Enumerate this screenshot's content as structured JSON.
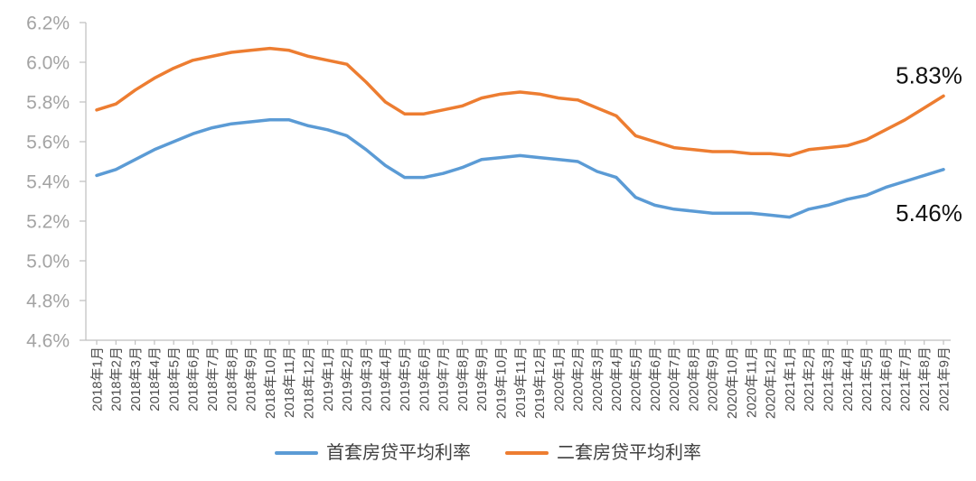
{
  "chart_data": {
    "type": "line",
    "title": "",
    "grid": false,
    "legend_position": "bottom",
    "categories": [
      "2018年1月",
      "2018年2月",
      "2018年3月",
      "2018年4月",
      "2018年5月",
      "2018年6月",
      "2018年7月",
      "2018年8月",
      "2018年9月",
      "2018年10月",
      "2018年11月",
      "2018年12月",
      "2019年1月",
      "2019年2月",
      "2019年3月",
      "2019年4月",
      "2019年5月",
      "2019年6月",
      "2019年7月",
      "2019年8月",
      "2019年9月",
      "2019年10月",
      "2019年11月",
      "2019年12月",
      "2020年1月",
      "2020年2月",
      "2020年3月",
      "2020年4月",
      "2020年5月",
      "2020年6月",
      "2020年7月",
      "2020年8月",
      "2020年9月",
      "2020年10月",
      "2020年11月",
      "2020年12月",
      "2021年1月",
      "2021年2月",
      "2021年3月",
      "2021年4月",
      "2021年5月",
      "2021年6月",
      "2021年7月",
      "2021年8月",
      "2021年9月"
    ],
    "series": [
      {
        "name": "首套房贷平均利率",
        "color": "#5B9BD5",
        "values": [
          5.43,
          5.46,
          5.51,
          5.56,
          5.6,
          5.64,
          5.67,
          5.69,
          5.7,
          5.71,
          5.71,
          5.68,
          5.66,
          5.63,
          5.56,
          5.48,
          5.42,
          5.42,
          5.44,
          5.47,
          5.51,
          5.52,
          5.53,
          5.52,
          5.51,
          5.5,
          5.45,
          5.42,
          5.32,
          5.28,
          5.26,
          5.25,
          5.24,
          5.24,
          5.24,
          5.23,
          5.22,
          5.26,
          5.28,
          5.31,
          5.33,
          5.37,
          5.4,
          5.43,
          5.46
        ]
      },
      {
        "name": "二套房贷平均利率",
        "color": "#ED7D31",
        "values": [
          5.76,
          5.79,
          5.86,
          5.92,
          5.97,
          6.01,
          6.03,
          6.05,
          6.06,
          6.07,
          6.06,
          6.03,
          6.01,
          5.99,
          5.9,
          5.8,
          5.74,
          5.74,
          5.76,
          5.78,
          5.82,
          5.84,
          5.85,
          5.84,
          5.82,
          5.81,
          5.77,
          5.73,
          5.63,
          5.6,
          5.57,
          5.56,
          5.55,
          5.55,
          5.54,
          5.54,
          5.53,
          5.56,
          5.57,
          5.58,
          5.61,
          5.66,
          5.71,
          5.77,
          5.83
        ]
      }
    ],
    "y_axis": {
      "min": 4.6,
      "max": 6.2,
      "step": 0.2,
      "unit": "%",
      "tick_labels": [
        "4.6%",
        "4.8%",
        "5.0%",
        "5.2%",
        "5.4%",
        "5.6%",
        "5.8%",
        "6.0%",
        "6.2%"
      ]
    },
    "annotations": [
      {
        "text": "5.83%",
        "series_index": 1,
        "placement": "above-line-end"
      },
      {
        "text": "5.46%",
        "series_index": 0,
        "placement": "below-line-end"
      }
    ]
  }
}
